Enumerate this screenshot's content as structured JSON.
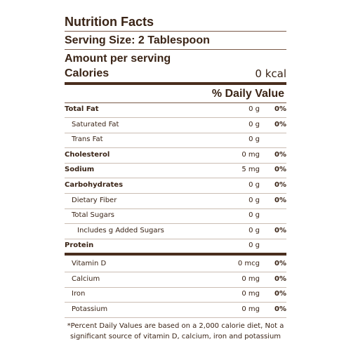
{
  "title": "Nutrition Facts",
  "serving_size": "Serving Size: 2 Tablespoon",
  "amount_per_serving": "Amount per serving",
  "calories": {
    "label": "Calories",
    "value": "0 kcal"
  },
  "daily_value_header": "% Daily Value",
  "rows": [
    {
      "name": "Total Fat",
      "amount": "0 g",
      "dv": "0%"
    },
    {
      "name": "Saturated Fat",
      "amount": "0 g",
      "dv": "0%"
    },
    {
      "name": "Trans Fat",
      "amount": "0 g"
    },
    {
      "name": "Cholesterol",
      "amount": "0 mg",
      "dv": "0%"
    },
    {
      "name": "Sodium",
      "amount": "5 mg",
      "dv": "0%"
    },
    {
      "name": "Carbohydrates",
      "amount": "0 g",
      "dv": "0%"
    },
    {
      "name": "Dietary Fiber",
      "amount": "0 g",
      "dv": "0%"
    },
    {
      "name": "Total Sugars",
      "amount": "0 g"
    },
    {
      "name": "Includes g Added Sugars",
      "amount": "0 g",
      "dv": "0%"
    },
    {
      "name": "Protein",
      "amount": "0 g"
    }
  ],
  "vitamins": [
    {
      "name": "Vitamin D",
      "amount": "0 mcg",
      "dv": "0%"
    },
    {
      "name": "Calcium",
      "amount": "0 mg",
      "dv": "0%"
    },
    {
      "name": "Iron",
      "amount": "0 mg",
      "dv": "0%"
    },
    {
      "name": "Potassium",
      "amount": "0 mg",
      "dv": "0%"
    }
  ],
  "footnote": [
    "*Percent Daily Values are based on a 2,000 calorie diet, Not a",
    "significant source of vitamin D, calcium, iron and potassium"
  ]
}
